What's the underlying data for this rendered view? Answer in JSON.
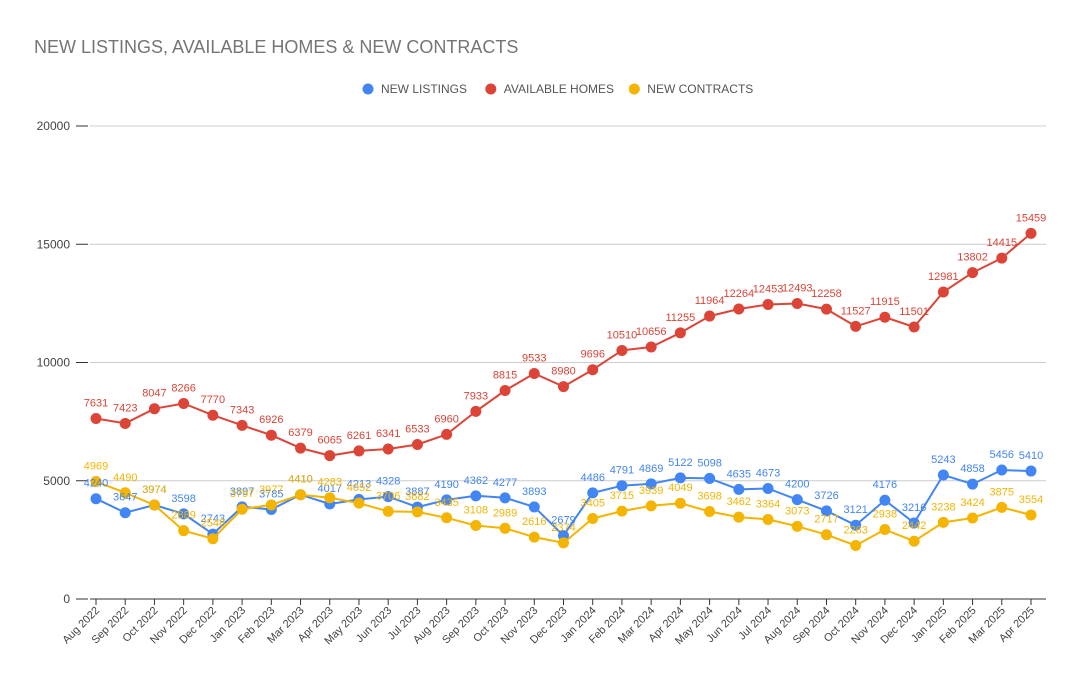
{
  "chart_data": {
    "type": "line",
    "title": "NEW LISTINGS, AVAILABLE HOMES & NEW CONTRACTS",
    "xlabel": "",
    "ylabel": "",
    "ylim": [
      0,
      20000
    ],
    "yticks": [
      0,
      5000,
      10000,
      15000,
      20000
    ],
    "grid": true,
    "legend_position": "top",
    "categories": [
      "Aug 2022",
      "Sep 2022",
      "Oct 2022",
      "Nov 2022",
      "Dec 2022",
      "Jan 2023",
      "Feb 2023",
      "Mar 2023",
      "Apr 2023",
      "May 2023",
      "Jun 2023",
      "Jul 2023",
      "Aug 2023",
      "Sep 2023",
      "Oct 2023",
      "Nov 2023",
      "Dec 2023",
      "Jan 2024",
      "Feb 2024",
      "Mar 2024",
      "Apr 2024",
      "May 2024",
      "Jun 2024",
      "Jul 2024",
      "Aug 2024",
      "Sep 2024",
      "Oct 2024",
      "Nov 2024",
      "Dec 2024",
      "Jan 2025",
      "Feb 2025",
      "Mar 2025",
      "Apr 2025"
    ],
    "series": [
      {
        "name": "NEW LISTINGS",
        "color": "#4285f4",
        "values": [
          4240,
          3647,
          3974,
          3598,
          2743,
          3897,
          3785,
          4410,
          4017,
          4213,
          4328,
          3887,
          4190,
          4362,
          4277,
          3893,
          2679,
          4486,
          4791,
          4869,
          5122,
          5098,
          4635,
          4673,
          4200,
          3726,
          3121,
          4176,
          3216,
          5243,
          4858,
          5456,
          5410
        ]
      },
      {
        "name": "AVAILABLE HOMES",
        "color": "#db4437",
        "values": [
          7631,
          7423,
          8047,
          8266,
          7770,
          7343,
          6926,
          6379,
          6065,
          6261,
          6341,
          6533,
          6960,
          7933,
          8815,
          9533,
          8980,
          9696,
          10510,
          10656,
          11255,
          11964,
          12264,
          12453,
          12493,
          12258,
          11527,
          11915,
          11501,
          12981,
          13802,
          14415,
          15459
        ]
      },
      {
        "name": "NEW CONTRACTS",
        "color": "#f4b400",
        "values": [
          4969,
          4490,
          3974,
          2889,
          2548,
          3797,
          3977,
          4410,
          4283,
          4052,
          3706,
          3682,
          3435,
          3108,
          2989,
          2616,
          2374,
          3405,
          3715,
          3939,
          4049,
          3698,
          3462,
          3364,
          3073,
          2717,
          2263,
          2938,
          2442,
          3238,
          3424,
          3875,
          3554
        ]
      }
    ]
  }
}
